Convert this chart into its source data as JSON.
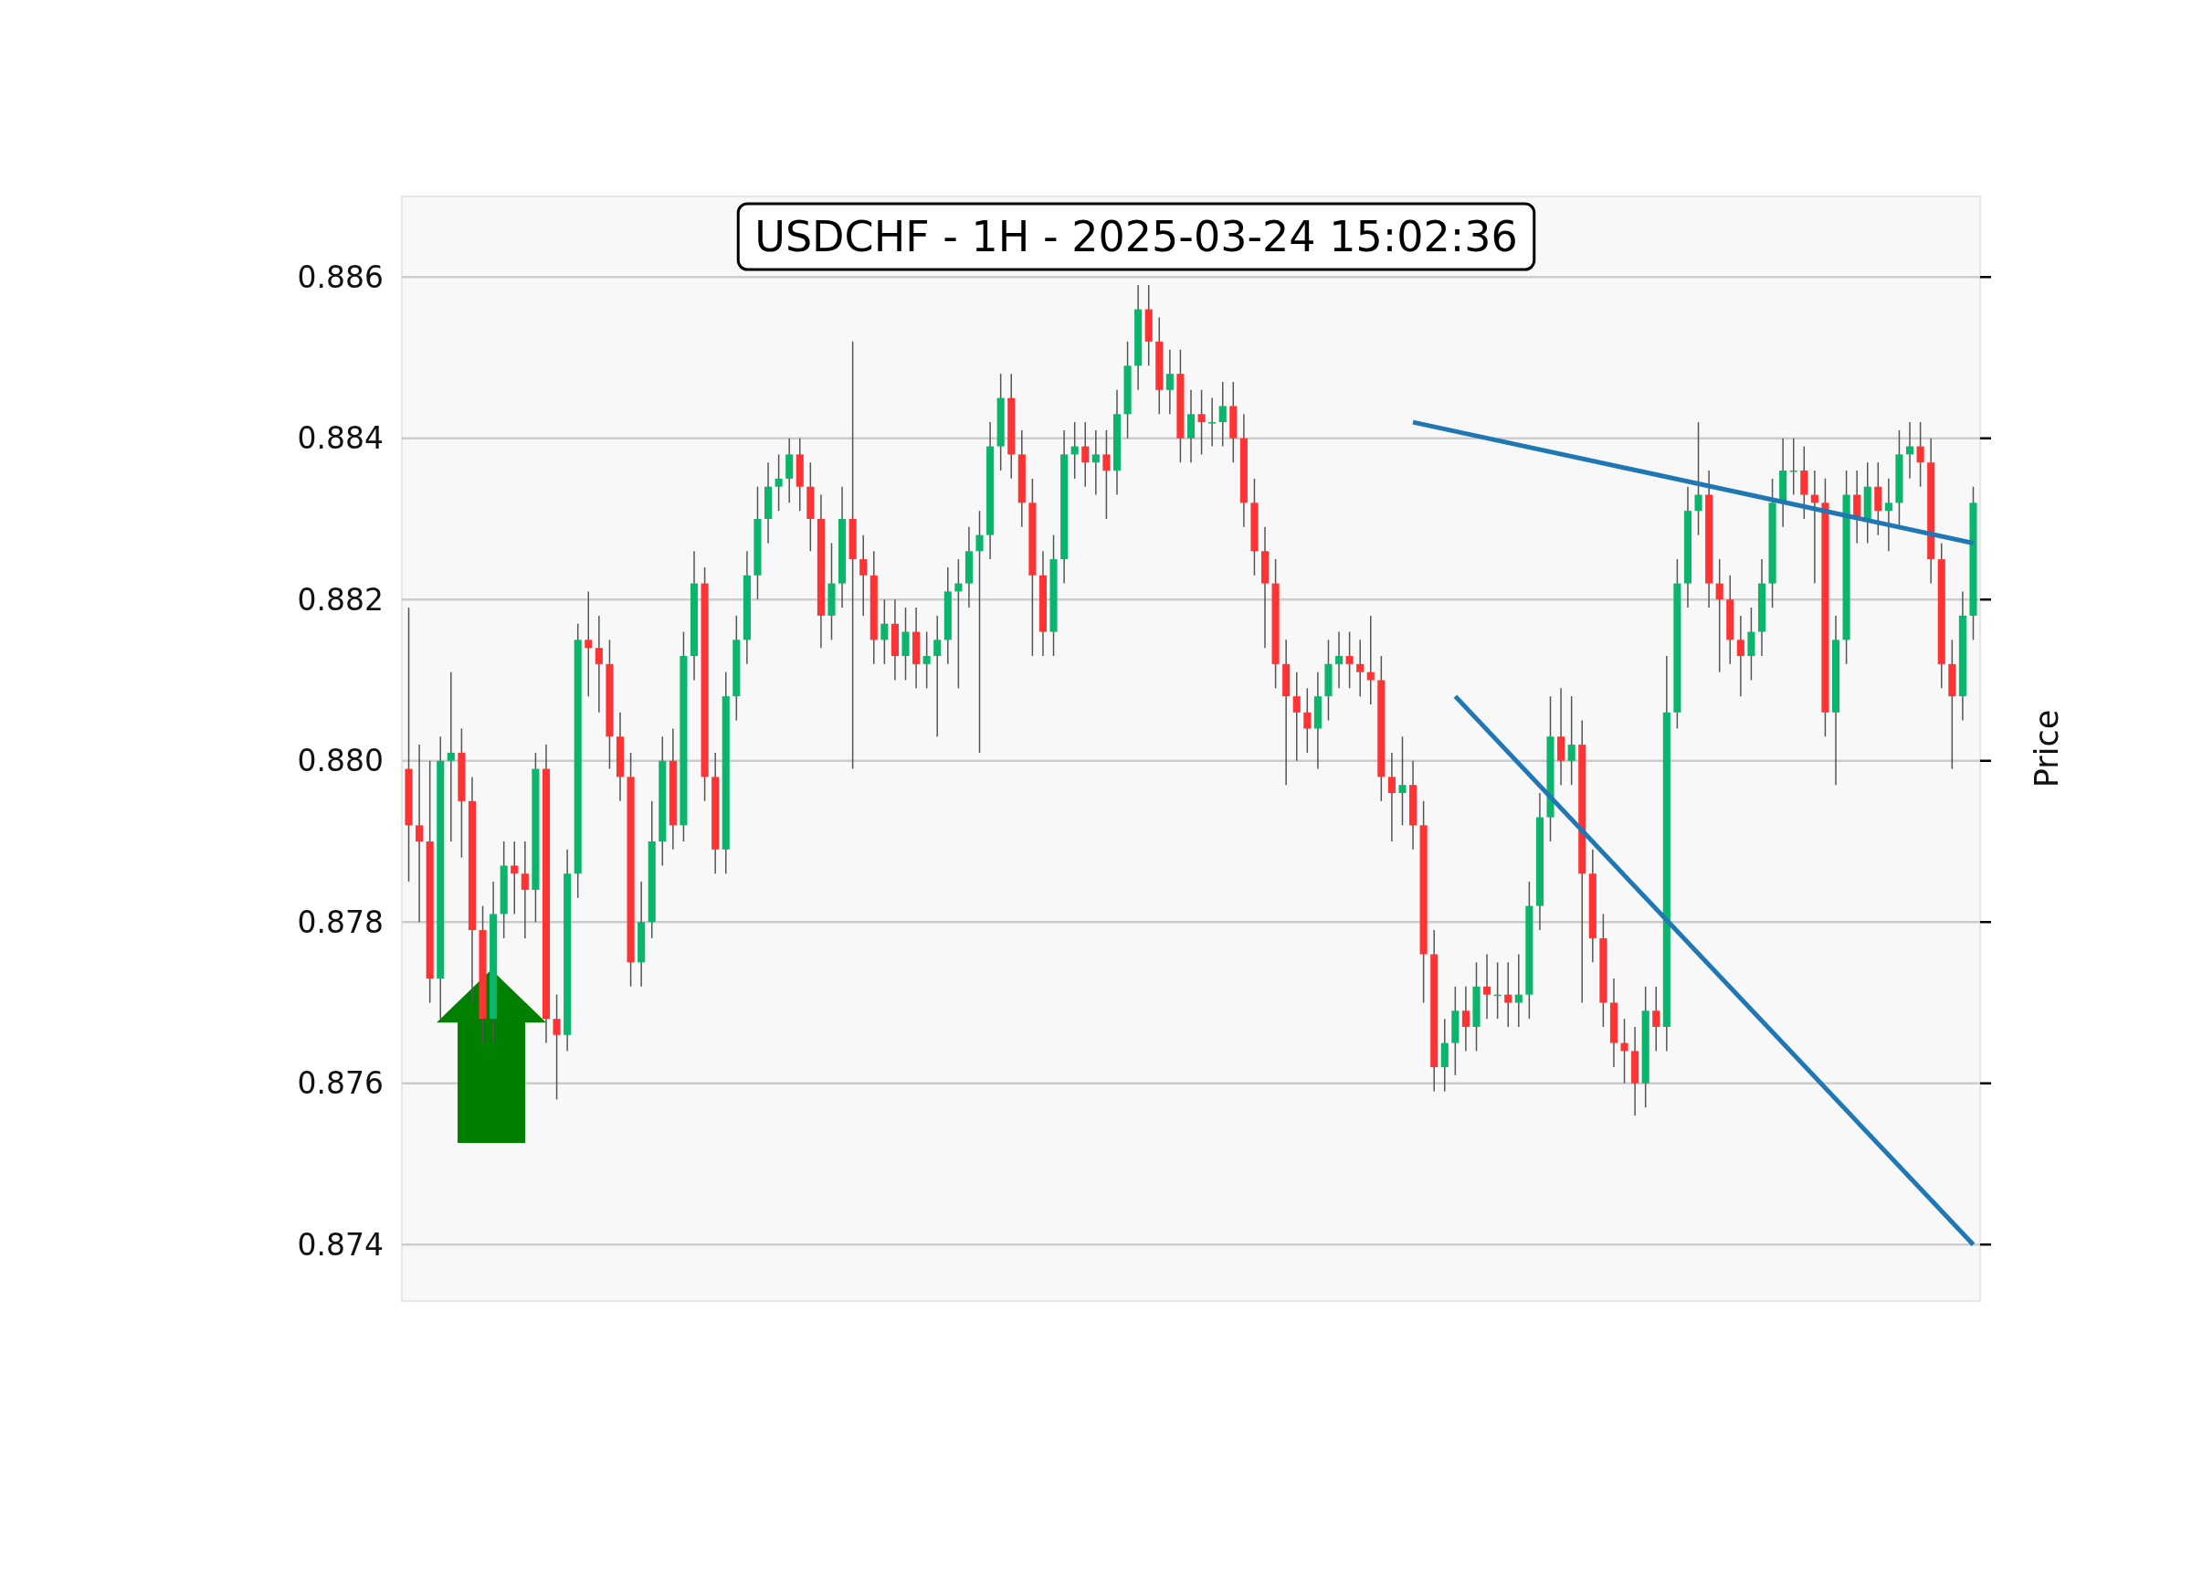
{
  "chart_data": {
    "type": "candlestick",
    "title": "USDCHF - 1H - 2025-03-24 15:02:36",
    "ylabel": "Price",
    "categories": [
      null,
      null,
      null,
      null,
      null,
      null,
      null,
      null,
      null,
      null,
      null,
      null,
      null,
      null,
      null,
      null,
      null,
      null,
      null,
      null,
      null,
      null,
      null,
      null,
      null,
      null,
      null,
      null,
      null,
      null,
      null,
      null,
      null,
      null,
      null,
      null,
      null,
      null,
      null,
      null,
      null,
      null,
      null,
      null,
      null,
      null,
      null,
      null,
      null,
      null,
      null,
      null,
      null,
      null,
      null,
      null,
      null,
      null,
      null,
      null,
      null,
      null,
      null,
      null,
      null,
      null,
      null,
      null,
      null,
      null,
      null,
      null,
      null,
      null,
      null,
      null,
      null,
      null,
      null,
      null,
      null,
      null,
      null,
      null,
      null,
      null,
      null,
      null,
      null,
      null,
      null,
      null,
      null,
      null,
      null,
      null,
      null,
      null,
      null,
      null,
      null,
      null,
      null,
      null,
      null,
      null,
      null,
      null,
      null,
      null,
      null,
      null,
      null,
      null,
      null,
      null,
      null,
      null,
      null,
      null,
      null,
      null,
      null,
      null,
      null,
      null,
      null,
      null,
      null,
      null,
      null,
      null,
      null,
      null,
      null,
      null,
      null,
      null,
      null,
      null,
      null,
      null,
      null,
      null,
      null,
      null,
      null,
      null,
      null
    ],
    "ohlc": [
      [
        0.8799,
        0.8819,
        0.8785,
        0.8792
      ],
      [
        0.8792,
        0.8802,
        0.878,
        0.879
      ],
      [
        0.879,
        0.88,
        0.877,
        0.8773
      ],
      [
        0.8773,
        0.8803,
        0.8768,
        0.88
      ],
      [
        0.88,
        0.8811,
        0.879,
        0.8801
      ],
      [
        0.8801,
        0.8804,
        0.8788,
        0.8795
      ],
      [
        0.8795,
        0.8798,
        0.877,
        0.8779
      ],
      [
        0.8779,
        0.8782,
        0.8765,
        0.8768
      ],
      [
        0.8768,
        0.8785,
        0.8765,
        0.8781
      ],
      [
        0.8781,
        0.879,
        0.8778,
        0.8787
      ],
      [
        0.8787,
        0.879,
        0.8781,
        0.8786
      ],
      [
        0.8786,
        0.879,
        0.8778,
        0.8784
      ],
      [
        0.8784,
        0.8801,
        0.878,
        0.8799
      ],
      [
        0.8799,
        0.8802,
        0.8765,
        0.8768
      ],
      [
        0.8768,
        0.8771,
        0.8758,
        0.8766
      ],
      [
        0.8766,
        0.8789,
        0.8764,
        0.8786
      ],
      [
        0.8786,
        0.8817,
        0.8783,
        0.8815
      ],
      [
        0.8815,
        0.8821,
        0.8808,
        0.8814
      ],
      [
        0.8814,
        0.8818,
        0.8806,
        0.8812
      ],
      [
        0.8812,
        0.8815,
        0.8799,
        0.8803
      ],
      [
        0.8803,
        0.8806,
        0.8795,
        0.8798
      ],
      [
        0.8798,
        0.8801,
        0.8772,
        0.8775
      ],
      [
        0.8775,
        0.8785,
        0.8772,
        0.878
      ],
      [
        0.878,
        0.8795,
        0.8778,
        0.879
      ],
      [
        0.879,
        0.8803,
        0.8787,
        0.88
      ],
      [
        0.88,
        0.8804,
        0.8789,
        0.8792
      ],
      [
        0.8792,
        0.8816,
        0.879,
        0.8813
      ],
      [
        0.8813,
        0.8826,
        0.881,
        0.8822
      ],
      [
        0.8822,
        0.8824,
        0.8795,
        0.8798
      ],
      [
        0.8798,
        0.8801,
        0.8786,
        0.8789
      ],
      [
        0.8789,
        0.8811,
        0.8786,
        0.8808
      ],
      [
        0.8808,
        0.8818,
        0.8805,
        0.8815
      ],
      [
        0.8815,
        0.8826,
        0.8812,
        0.8823
      ],
      [
        0.8823,
        0.8834,
        0.882,
        0.883
      ],
      [
        0.883,
        0.8837,
        0.8827,
        0.8834
      ],
      [
        0.8834,
        0.8838,
        0.8831,
        0.8835
      ],
      [
        0.8835,
        0.884,
        0.8832,
        0.8838
      ],
      [
        0.8838,
        0.884,
        0.8831,
        0.8834
      ],
      [
        0.8834,
        0.8837,
        0.8826,
        0.883
      ],
      [
        0.883,
        0.8833,
        0.8814,
        0.8818
      ],
      [
        0.8818,
        0.8827,
        0.8815,
        0.8822
      ],
      [
        0.8822,
        0.8834,
        0.8819,
        0.883
      ],
      [
        0.883,
        0.8852,
        0.8799,
        0.8825
      ],
      [
        0.8825,
        0.8828,
        0.8818,
        0.8823
      ],
      [
        0.8823,
        0.8826,
        0.8812,
        0.8815
      ],
      [
        0.8815,
        0.882,
        0.8812,
        0.8817
      ],
      [
        0.8817,
        0.882,
        0.881,
        0.8813
      ],
      [
        0.8813,
        0.8819,
        0.881,
        0.8816
      ],
      [
        0.8816,
        0.8819,
        0.8809,
        0.8812
      ],
      [
        0.8812,
        0.8816,
        0.8809,
        0.8813
      ],
      [
        0.8813,
        0.8818,
        0.8803,
        0.8815
      ],
      [
        0.8815,
        0.8824,
        0.8812,
        0.8821
      ],
      [
        0.8821,
        0.8825,
        0.8809,
        0.8822
      ],
      [
        0.8822,
        0.8829,
        0.8819,
        0.8826
      ],
      [
        0.8826,
        0.8831,
        0.8801,
        0.8828
      ],
      [
        0.8828,
        0.8842,
        0.8825,
        0.8839
      ],
      [
        0.8839,
        0.8848,
        0.8836,
        0.8845
      ],
      [
        0.8845,
        0.8848,
        0.8835,
        0.8838
      ],
      [
        0.8838,
        0.8841,
        0.8829,
        0.8832
      ],
      [
        0.8832,
        0.8835,
        0.8813,
        0.8823
      ],
      [
        0.8823,
        0.8826,
        0.8813,
        0.8816
      ],
      [
        0.8816,
        0.8828,
        0.8813,
        0.8825
      ],
      [
        0.8825,
        0.8841,
        0.8822,
        0.8838
      ],
      [
        0.8838,
        0.8842,
        0.8835,
        0.8839
      ],
      [
        0.8839,
        0.8842,
        0.8834,
        0.8837
      ],
      [
        0.8837,
        0.8841,
        0.8833,
        0.8838
      ],
      [
        0.8838,
        0.8841,
        0.883,
        0.8836
      ],
      [
        0.8836,
        0.8846,
        0.8833,
        0.8843
      ],
      [
        0.8843,
        0.8852,
        0.884,
        0.8849
      ],
      [
        0.8849,
        0.8859,
        0.8846,
        0.8856
      ],
      [
        0.8856,
        0.8859,
        0.8849,
        0.8852
      ],
      [
        0.8852,
        0.8855,
        0.8843,
        0.8846
      ],
      [
        0.8846,
        0.8851,
        0.8843,
        0.8848
      ],
      [
        0.8848,
        0.8851,
        0.8837,
        0.884
      ],
      [
        0.884,
        0.8846,
        0.8837,
        0.8843
      ],
      [
        0.8843,
        0.8846,
        0.8838,
        0.8842
      ],
      [
        0.8842,
        0.8845,
        0.8839,
        0.8842
      ],
      [
        0.8842,
        0.8847,
        0.8839,
        0.8844
      ],
      [
        0.8844,
        0.8847,
        0.8837,
        0.884
      ],
      [
        0.884,
        0.8843,
        0.8829,
        0.8832
      ],
      [
        0.8832,
        0.8835,
        0.8823,
        0.8826
      ],
      [
        0.8826,
        0.8829,
        0.8814,
        0.8822
      ],
      [
        0.8822,
        0.8825,
        0.8809,
        0.8812
      ],
      [
        0.8812,
        0.8815,
        0.8797,
        0.8808
      ],
      [
        0.8808,
        0.8811,
        0.88,
        0.8806
      ],
      [
        0.8806,
        0.8809,
        0.8801,
        0.8804
      ],
      [
        0.8804,
        0.8811,
        0.8799,
        0.8808
      ],
      [
        0.8808,
        0.8815,
        0.8805,
        0.8812
      ],
      [
        0.8812,
        0.8816,
        0.8809,
        0.8813
      ],
      [
        0.8813,
        0.8816,
        0.8809,
        0.8812
      ],
      [
        0.8812,
        0.8815,
        0.8808,
        0.8811
      ],
      [
        0.8811,
        0.8818,
        0.8807,
        0.881
      ],
      [
        0.881,
        0.8813,
        0.8795,
        0.8798
      ],
      [
        0.8798,
        0.8801,
        0.879,
        0.8796
      ],
      [
        0.8796,
        0.8803,
        0.8792,
        0.8797
      ],
      [
        0.8797,
        0.88,
        0.8789,
        0.8792
      ],
      [
        0.8792,
        0.8795,
        0.877,
        0.8776
      ],
      [
        0.8776,
        0.8779,
        0.8759,
        0.8762
      ],
      [
        0.8762,
        0.8768,
        0.8759,
        0.8765
      ],
      [
        0.8765,
        0.8772,
        0.8761,
        0.8769
      ],
      [
        0.8769,
        0.8772,
        0.8764,
        0.8767
      ],
      [
        0.8767,
        0.8775,
        0.8764,
        0.8772
      ],
      [
        0.8772,
        0.8776,
        0.8768,
        0.8771
      ],
      [
        0.8771,
        0.8775,
        0.8768,
        0.8771
      ],
      [
        0.8771,
        0.8775,
        0.8767,
        0.877
      ],
      [
        0.877,
        0.8776,
        0.8767,
        0.8771
      ],
      [
        0.8771,
        0.8785,
        0.8768,
        0.8782
      ],
      [
        0.8782,
        0.8796,
        0.8779,
        0.8793
      ],
      [
        0.8793,
        0.8808,
        0.879,
        0.8803
      ],
      [
        0.8803,
        0.8809,
        0.8797,
        0.88
      ],
      [
        0.88,
        0.8808,
        0.8797,
        0.8802
      ],
      [
        0.8802,
        0.8805,
        0.877,
        0.8786
      ],
      [
        0.8786,
        0.8789,
        0.8775,
        0.8778
      ],
      [
        0.8778,
        0.8781,
        0.8767,
        0.877
      ],
      [
        0.877,
        0.8773,
        0.8762,
        0.8765
      ],
      [
        0.8765,
        0.8768,
        0.876,
        0.8764
      ],
      [
        0.8764,
        0.8767,
        0.8756,
        0.876
      ],
      [
        0.876,
        0.8772,
        0.8757,
        0.8769
      ],
      [
        0.8769,
        0.8772,
        0.8764,
        0.8767
      ],
      [
        0.8767,
        0.8813,
        0.8764,
        0.8806
      ],
      [
        0.8806,
        0.8825,
        0.8804,
        0.8822
      ],
      [
        0.8822,
        0.8834,
        0.8819,
        0.8831
      ],
      [
        0.8831,
        0.8842,
        0.8828,
        0.8833
      ],
      [
        0.8833,
        0.8836,
        0.8819,
        0.8822
      ],
      [
        0.8822,
        0.8825,
        0.8811,
        0.882
      ],
      [
        0.882,
        0.8823,
        0.8812,
        0.8815
      ],
      [
        0.8815,
        0.8818,
        0.8808,
        0.8813
      ],
      [
        0.8813,
        0.8819,
        0.881,
        0.8816
      ],
      [
        0.8816,
        0.8825,
        0.8813,
        0.8822
      ],
      [
        0.8822,
        0.8835,
        0.8819,
        0.8832
      ],
      [
        0.8832,
        0.884,
        0.8829,
        0.8836
      ],
      [
        0.8836,
        0.884,
        0.8833,
        0.8836
      ],
      [
        0.8836,
        0.8839,
        0.883,
        0.8833
      ],
      [
        0.8833,
        0.8836,
        0.8822,
        0.8832
      ],
      [
        0.8832,
        0.8835,
        0.8803,
        0.8806
      ],
      [
        0.8806,
        0.8818,
        0.8797,
        0.8815
      ],
      [
        0.8815,
        0.8836,
        0.8812,
        0.8833
      ],
      [
        0.8833,
        0.8836,
        0.8827,
        0.883
      ],
      [
        0.883,
        0.8837,
        0.8827,
        0.8834
      ],
      [
        0.8834,
        0.8837,
        0.8828,
        0.8831
      ],
      [
        0.8831,
        0.8835,
        0.8826,
        0.8832
      ],
      [
        0.8832,
        0.8841,
        0.8829,
        0.8838
      ],
      [
        0.8838,
        0.8842,
        0.8835,
        0.8839
      ],
      [
        0.8839,
        0.8842,
        0.8834,
        0.8837
      ],
      [
        0.8837,
        0.884,
        0.8822,
        0.8825
      ],
      [
        0.8825,
        0.8827,
        0.8809,
        0.8812
      ],
      [
        0.8812,
        0.8815,
        0.8799,
        0.8808
      ],
      [
        0.8808,
        0.8821,
        0.8805,
        0.8818
      ],
      [
        0.8818,
        0.8834,
        0.8815,
        0.8832
      ]
    ],
    "series": [
      {
        "type": "line",
        "color": "#1f77b4",
        "values": [
          null,
          null,
          null,
          null,
          null,
          null,
          null,
          null,
          null,
          null,
          null,
          null,
          null,
          null,
          null,
          null,
          null,
          null,
          null,
          null,
          null,
          null,
          null,
          null,
          null,
          null,
          null,
          null,
          null,
          null,
          null,
          null,
          null,
          null,
          null,
          null,
          null,
          null,
          null,
          null,
          null,
          null,
          null,
          null,
          null,
          null,
          null,
          null,
          null,
          null,
          null,
          null,
          null,
          null,
          null,
          null,
          null,
          null,
          null,
          null,
          null,
          null,
          null,
          null,
          null,
          null,
          null,
          null,
          null,
          null,
          null,
          null,
          null,
          null,
          null,
          null,
          null,
          null,
          null,
          null,
          null,
          null,
          null,
          null,
          null,
          null,
          null,
          null,
          null,
          null,
          null,
          null,
          null,
          null,
          null,
          0.8842,
          null,
          null,
          null,
          null,
          null,
          null,
          null,
          null,
          null,
          null,
          null,
          null,
          null,
          null,
          null,
          null,
          null,
          null,
          null,
          null,
          null,
          null,
          null,
          null,
          null,
          null,
          null,
          null,
          null,
          null,
          null,
          null,
          null,
          null,
          null,
          null,
          null,
          null,
          null,
          null,
          null,
          null,
          null,
          null,
          null,
          null,
          null,
          null,
          null,
          null,
          null,
          null,
          0.8827
        ]
      },
      {
        "type": "line",
        "color": "#1f77b4",
        "values": [
          null,
          null,
          null,
          null,
          null,
          null,
          null,
          null,
          null,
          null,
          null,
          null,
          null,
          null,
          null,
          null,
          null,
          null,
          null,
          null,
          null,
          null,
          null,
          null,
          null,
          null,
          null,
          null,
          null,
          null,
          null,
          null,
          null,
          null,
          null,
          null,
          null,
          null,
          null,
          null,
          null,
          null,
          null,
          null,
          null,
          null,
          null,
          null,
          null,
          null,
          null,
          null,
          null,
          null,
          null,
          null,
          null,
          null,
          null,
          null,
          null,
          null,
          null,
          null,
          null,
          null,
          null,
          null,
          null,
          null,
          null,
          null,
          null,
          null,
          null,
          null,
          null,
          null,
          null,
          null,
          null,
          null,
          null,
          null,
          null,
          null,
          null,
          null,
          null,
          null,
          null,
          null,
          null,
          null,
          null,
          null,
          null,
          null,
          null,
          0.8808,
          null,
          null,
          null,
          null,
          null,
          null,
          null,
          null,
          null,
          null,
          null,
          null,
          null,
          null,
          null,
          null,
          null,
          null,
          null,
          null,
          null,
          null,
          null,
          null,
          null,
          null,
          null,
          null,
          null,
          null,
          null,
          null,
          null,
          null,
          null,
          null,
          null,
          null,
          null,
          null,
          null,
          null,
          null,
          null,
          null,
          null,
          null,
          null,
          0.874
        ]
      }
    ],
    "ylim": [
      0.8733,
      0.887
    ],
    "yticks": [
      {
        "value": 0.874,
        "label": "0.874"
      },
      {
        "value": 0.876,
        "label": "0.876"
      },
      {
        "value": 0.878,
        "label": "0.878"
      },
      {
        "value": 0.88,
        "label": "0.880"
      },
      {
        "value": 0.882,
        "label": "0.882"
      },
      {
        "value": 0.884,
        "label": "0.884"
      },
      {
        "value": 0.886,
        "label": "0.886"
      }
    ],
    "grid": "y",
    "tick_labels": "y"
  }
}
